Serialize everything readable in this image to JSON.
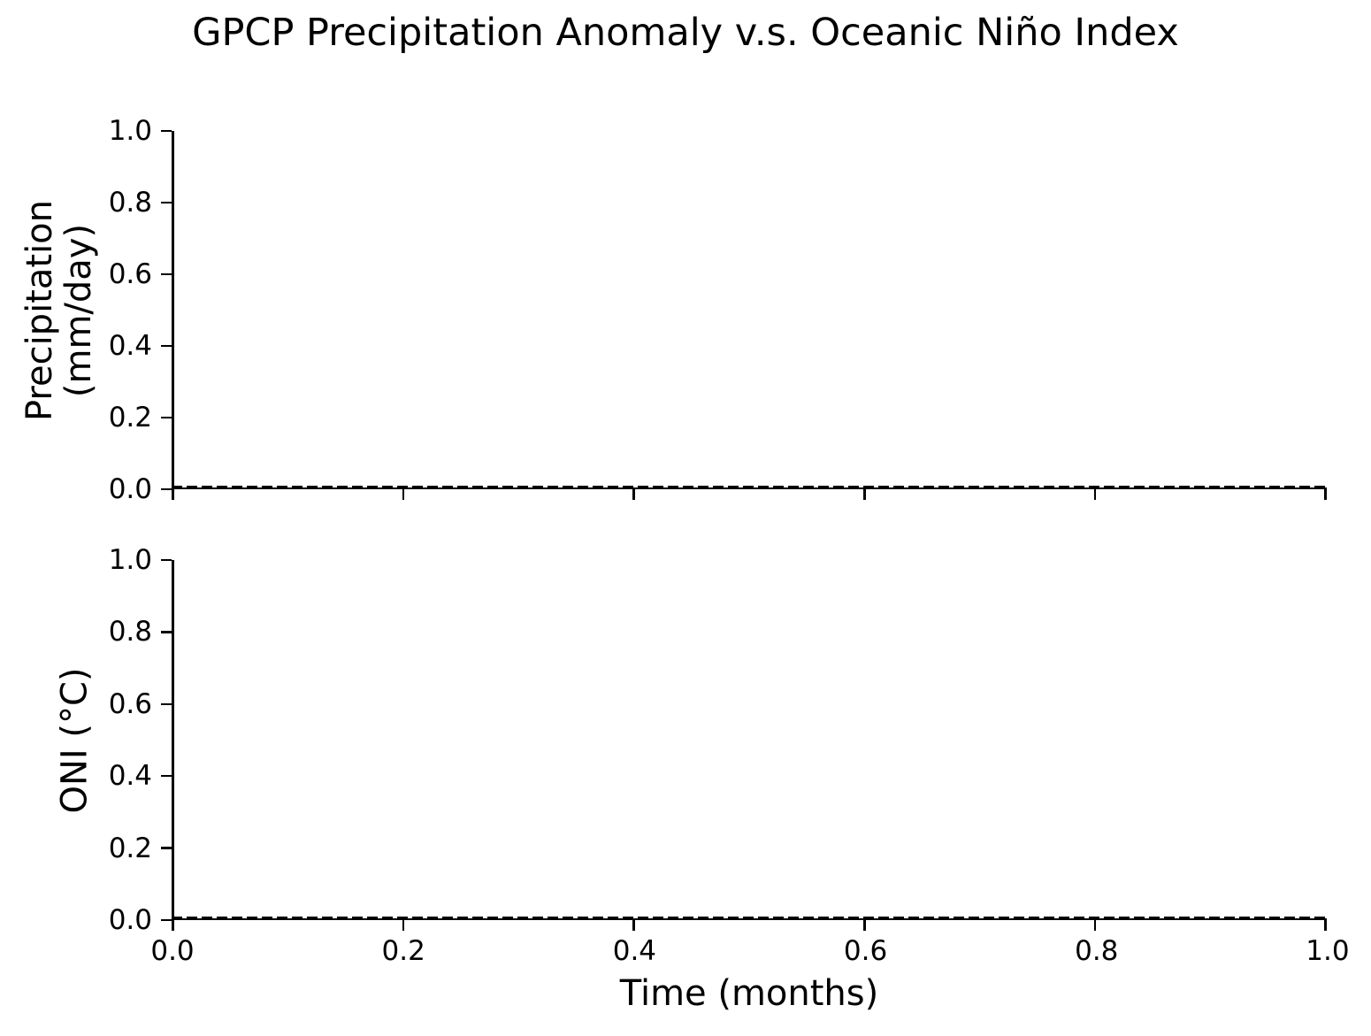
{
  "title": "GPCP Precipitation Anomaly v.s. Oceanic Niño Index",
  "xlabel": "Time (months)",
  "xtick_labels": [
    "0.0",
    "0.2",
    "0.4",
    "0.6",
    "0.8",
    "1.0"
  ],
  "subplot_precip": {
    "ylabel_line1": "Precipitation",
    "ylabel_line2": "(mm/day)",
    "ytick_labels": [
      "1.0",
      "0.8",
      "0.6",
      "0.4",
      "0.2",
      "0.0"
    ]
  },
  "subplot_oni": {
    "ylabel": "ONI (°C)",
    "ytick_labels": [
      "1.0",
      "0.8",
      "0.6",
      "0.4",
      "0.2",
      "0.0"
    ]
  },
  "colors": {
    "foreground": "#000000",
    "background": "#ffffff"
  },
  "chart_data": [
    {
      "type": "line",
      "title": "GPCP Precipitation Anomaly v.s. Oceanic Niño Index",
      "xlabel": "Time (months)",
      "ylabel": "Precipitation (mm/day)",
      "xlim": [
        0.0,
        1.0
      ],
      "ylim": [
        0.0,
        1.0
      ],
      "xticks": [
        0.0,
        0.2,
        0.4,
        0.6,
        0.8,
        1.0
      ],
      "yticks": [
        0.0,
        0.2,
        0.4,
        0.6,
        0.8,
        1.0
      ],
      "grid": false,
      "legend": "none",
      "series": [
        {
          "name": "zero-reference",
          "style": "dashed",
          "color": "#000000",
          "x": [
            0.0,
            1.0
          ],
          "values": [
            0.0,
            0.0
          ]
        }
      ]
    },
    {
      "type": "line",
      "title": "",
      "xlabel": "Time (months)",
      "ylabel": "ONI (°C)",
      "xlim": [
        0.0,
        1.0
      ],
      "ylim": [
        0.0,
        1.0
      ],
      "xticks": [
        0.0,
        0.2,
        0.4,
        0.6,
        0.8,
        1.0
      ],
      "yticks": [
        0.0,
        0.2,
        0.4,
        0.6,
        0.8,
        1.0
      ],
      "grid": false,
      "legend": "none",
      "series": [
        {
          "name": "zero-reference",
          "style": "dashed",
          "color": "#000000",
          "x": [
            0.0,
            1.0
          ],
          "values": [
            0.0,
            0.0
          ]
        }
      ]
    }
  ]
}
